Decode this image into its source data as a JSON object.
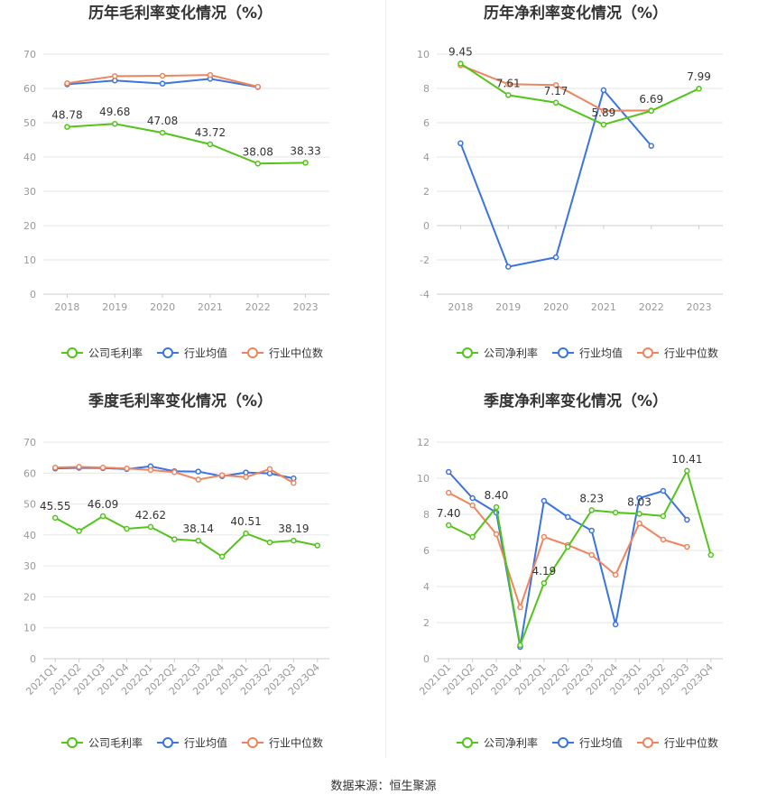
{
  "charts": {
    "c1": {
      "type": "line",
      "title": "历年毛利率变化情况（%）",
      "categories": [
        "2018",
        "2019",
        "2020",
        "2021",
        "2022",
        "2023"
      ],
      "ylim": [
        0,
        70
      ],
      "yticks": [
        0,
        10,
        20,
        30,
        40,
        50,
        60,
        70
      ],
      "series": [
        {
          "name": "公司毛利率",
          "color": "#52c41a",
          "values": [
            48.78,
            49.68,
            47.08,
            43.72,
            38.08,
            38.33
          ],
          "labels": [
            true,
            true,
            true,
            true,
            true,
            true
          ]
        },
        {
          "name": "行业均值",
          "color": "#3b73e0",
          "values": [
            61.2,
            62.3,
            61.4,
            62.8,
            60.4,
            null
          ],
          "labels": [
            false,
            false,
            false,
            false,
            false,
            false
          ]
        },
        {
          "name": "行业中位数",
          "color": "#f0845c",
          "values": [
            61.5,
            63.6,
            63.7,
            63.9,
            60.5,
            null
          ],
          "labels": [
            false,
            false,
            false,
            false,
            false,
            false
          ]
        }
      ],
      "rotate_xlabels": false
    },
    "c2": {
      "type": "line",
      "title": "历年净利率变化情况（%）",
      "categories": [
        "2018",
        "2019",
        "2020",
        "2021",
        "2022",
        "2023"
      ],
      "ylim": [
        -4,
        10
      ],
      "yticks": [
        -4,
        -2,
        0,
        2,
        4,
        6,
        8,
        10
      ],
      "series": [
        {
          "name": "公司净利率",
          "color": "#52c41a",
          "values": [
            9.45,
            7.61,
            7.17,
            5.89,
            6.69,
            7.99
          ],
          "labels": [
            true,
            true,
            true,
            true,
            true,
            true
          ]
        },
        {
          "name": "行业均值",
          "color": "#3b73e0",
          "values": [
            4.8,
            -2.4,
            -1.85,
            7.9,
            4.65,
            null
          ],
          "labels": [
            false,
            false,
            false,
            false,
            false,
            false
          ]
        },
        {
          "name": "行业中位数",
          "color": "#f0845c",
          "values": [
            9.35,
            8.25,
            8.2,
            6.7,
            6.72,
            null
          ],
          "labels": [
            false,
            false,
            false,
            false,
            false,
            false
          ]
        }
      ],
      "rotate_xlabels": false
    },
    "c3": {
      "type": "line",
      "title": "季度毛利率变化情况（%）",
      "categories": [
        "2021Q1",
        "2021Q2",
        "2021Q3",
        "2021Q4",
        "2022Q1",
        "2022Q2",
        "2022Q3",
        "2022Q4",
        "2023Q1",
        "2023Q2",
        "2023Q3",
        "2023Q4"
      ],
      "ylim": [
        0,
        70
      ],
      "yticks": [
        0,
        10,
        20,
        30,
        40,
        50,
        60,
        70
      ],
      "series": [
        {
          "name": "公司毛利率",
          "color": "#52c41a",
          "values": [
            45.55,
            41.3,
            46.09,
            42.0,
            42.62,
            38.6,
            38.14,
            33.0,
            40.51,
            37.6,
            38.19,
            36.6
          ],
          "labels": [
            true,
            false,
            true,
            false,
            true,
            false,
            true,
            false,
            true,
            false,
            true,
            false
          ]
        },
        {
          "name": "行业均值",
          "color": "#3b73e0",
          "values": [
            61.5,
            61.7,
            61.6,
            61.3,
            62.2,
            60.6,
            60.5,
            59.0,
            60.2,
            59.9,
            58.3,
            null
          ],
          "labels": [
            false,
            false,
            false,
            false,
            false,
            false,
            false,
            false,
            false,
            false,
            false,
            false
          ]
        },
        {
          "name": "行业中位数",
          "color": "#f0845c",
          "values": [
            61.8,
            62.0,
            61.8,
            61.5,
            61.0,
            60.3,
            57.9,
            59.3,
            58.7,
            61.3,
            56.8,
            null
          ],
          "labels": [
            false,
            false,
            false,
            false,
            false,
            false,
            false,
            false,
            false,
            false,
            false,
            false
          ]
        }
      ],
      "rotate_xlabels": true
    },
    "c4": {
      "type": "line",
      "title": "季度净利率变化情况（%）",
      "categories": [
        "2021Q1",
        "2021Q2",
        "2021Q3",
        "2021Q4",
        "2022Q1",
        "2022Q2",
        "2022Q3",
        "2022Q4",
        "2023Q1",
        "2023Q2",
        "2023Q3",
        "2023Q4"
      ],
      "ylim": [
        0,
        12
      ],
      "yticks": [
        0,
        2,
        4,
        6,
        8,
        10,
        12
      ],
      "series": [
        {
          "name": "公司净利率",
          "color": "#52c41a",
          "values": [
            7.4,
            6.75,
            8.4,
            0.75,
            4.19,
            6.2,
            8.23,
            8.1,
            8.03,
            7.9,
            10.41,
            5.75
          ],
          "labels": [
            true,
            false,
            true,
            false,
            true,
            false,
            true,
            false,
            true,
            false,
            true,
            false
          ]
        },
        {
          "name": "行业均值",
          "color": "#3b73e0",
          "values": [
            10.35,
            8.9,
            8.1,
            0.65,
            8.75,
            7.85,
            7.1,
            1.9,
            8.9,
            9.3,
            7.7,
            null
          ],
          "labels": [
            false,
            false,
            false,
            false,
            false,
            false,
            false,
            false,
            false,
            false,
            false,
            false
          ]
        },
        {
          "name": "行业中位数",
          "color": "#f0845c",
          "values": [
            9.2,
            8.5,
            6.9,
            2.85,
            6.75,
            6.3,
            5.75,
            4.65,
            7.5,
            6.6,
            6.2,
            null
          ],
          "labels": [
            false,
            false,
            false,
            false,
            false,
            false,
            false,
            false,
            false,
            false,
            false,
            false
          ]
        }
      ],
      "rotate_xlabels": true
    }
  },
  "source_text": "数据来源：恒生聚源"
}
